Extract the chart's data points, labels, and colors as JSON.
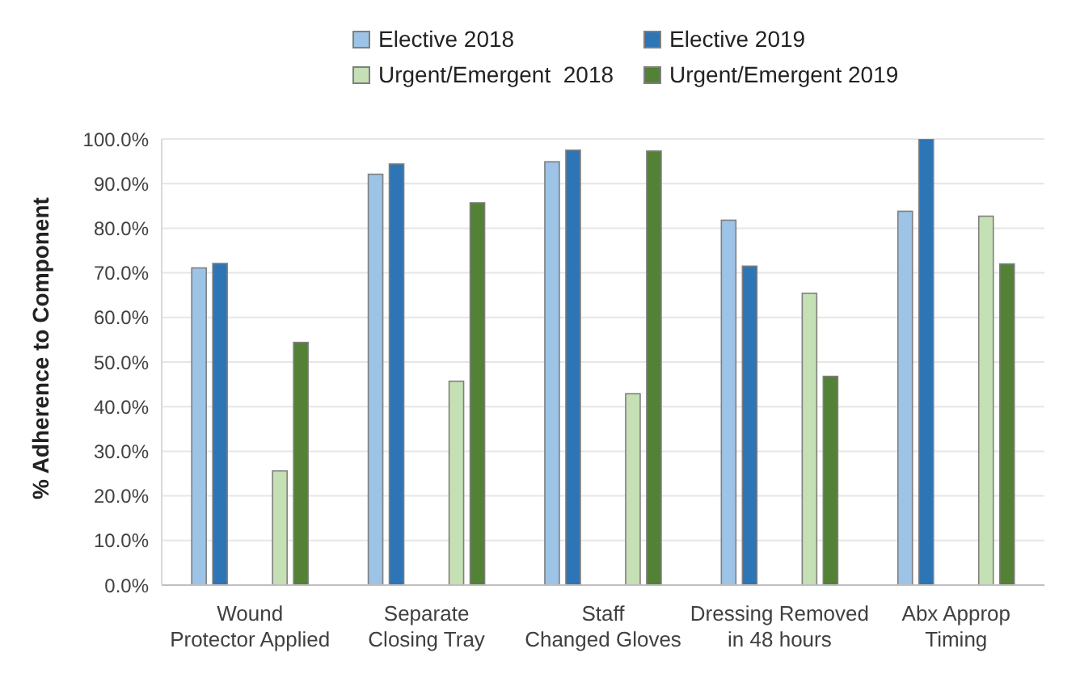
{
  "chart_data": {
    "type": "bar",
    "ylabel": "% Adherence to Component",
    "categories": [
      "Wound\nProtector Applied",
      "Separate\nClosing Tray",
      "Staff\nChanged Gloves",
      "Dressing Removed\nin 48 hours",
      "Abx Approp\nTiming"
    ],
    "series": [
      {
        "name": "Elective 2018",
        "color": "#9dc3e6",
        "values": [
          71.1,
          92.1,
          94.9,
          81.8,
          83.8
        ]
      },
      {
        "name": "Elective 2019",
        "color": "#2e75b6",
        "values": [
          72.1,
          94.4,
          97.5,
          71.5,
          100
        ]
      },
      {
        "name": "Urgent/Emergent  2018",
        "color": "#c5e0b4",
        "values": [
          25.6,
          45.7,
          42.9,
          65.4,
          82.7
        ]
      },
      {
        "name": "Urgent/Emergent 2019",
        "color": "#538135",
        "values": [
          54.4,
          85.7,
          97.3,
          46.8,
          72.0
        ]
      }
    ],
    "ylim": [
      0,
      100
    ],
    "yticks": [
      {
        "value": 0,
        "label": "0.0%"
      },
      {
        "value": 10,
        "label": "10.0%"
      },
      {
        "value": 20,
        "label": "20.0%"
      },
      {
        "value": 30,
        "label": "30.0%"
      },
      {
        "value": 40,
        "label": "40.0%"
      },
      {
        "value": 50,
        "label": "50.0%"
      },
      {
        "value": 60,
        "label": "60.0%"
      },
      {
        "value": 70,
        "label": "70.0%"
      },
      {
        "value": 80,
        "label": "80.0%"
      },
      {
        "value": 90,
        "label": "90.0%"
      },
      {
        "value": 100,
        "label": "100.0%"
      }
    ],
    "grid": "y",
    "legend": "top"
  }
}
